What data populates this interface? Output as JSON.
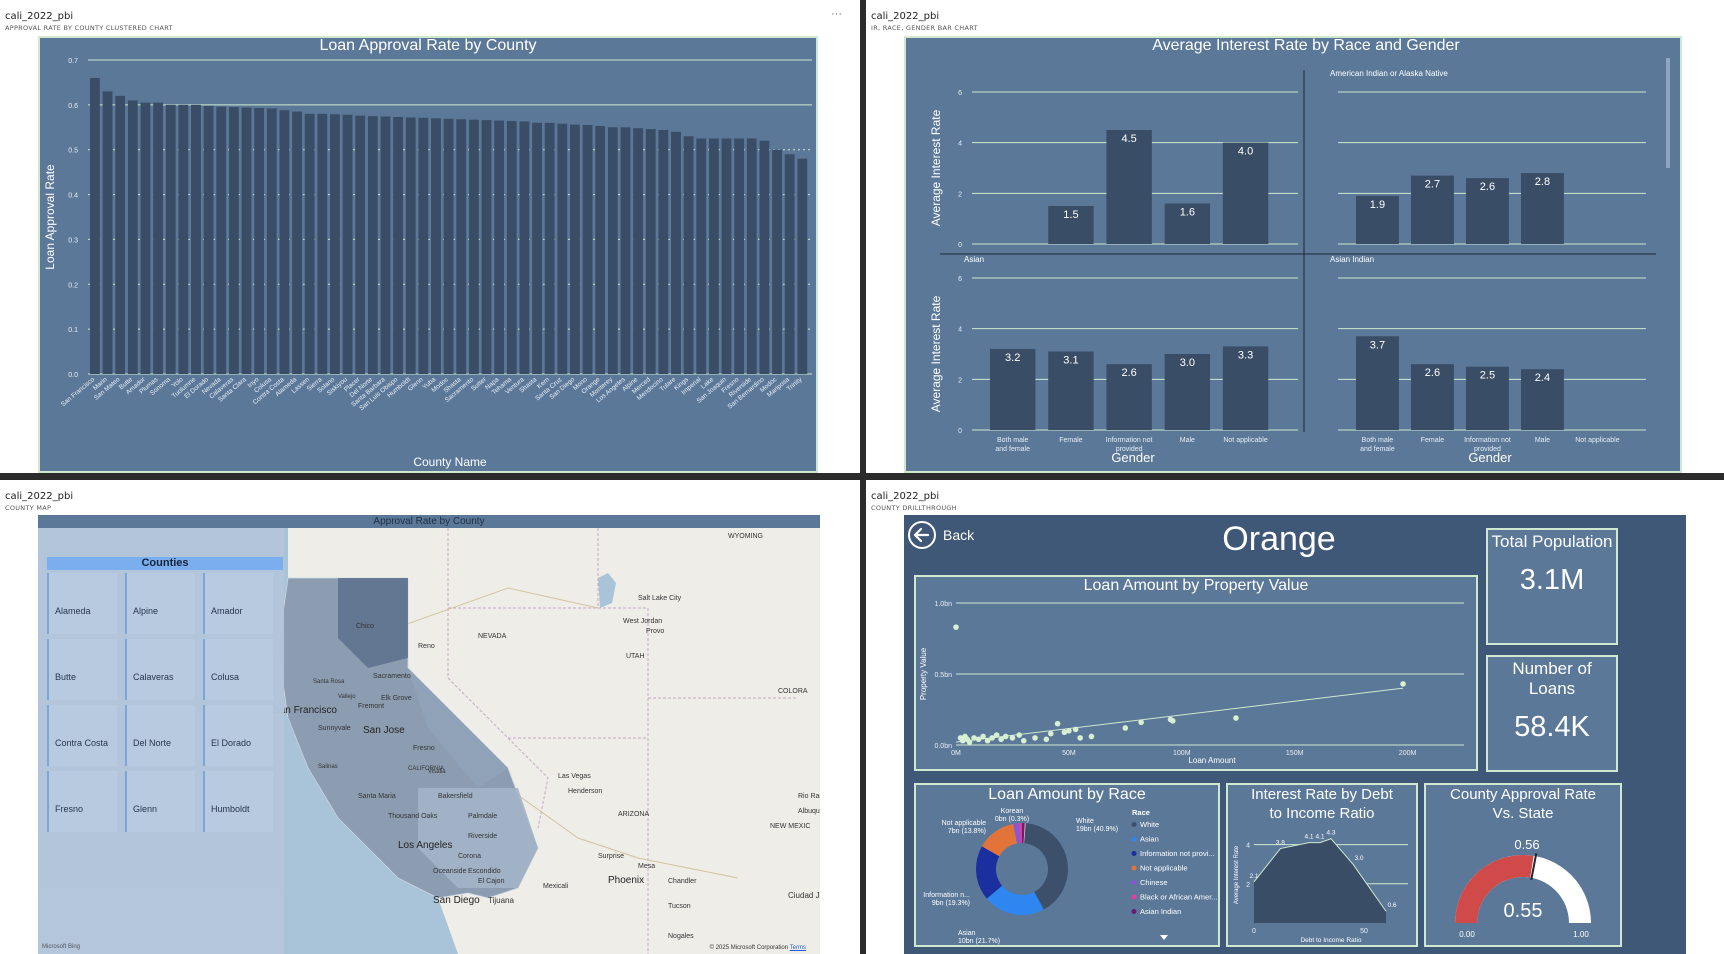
{
  "q1": {
    "report": "cali_2022_pbi",
    "visual": "APPROVAL RATE BY COUNTY CLUSTERED CHART",
    "more": "···",
    "chart_data": {
      "type": "bar",
      "title": "Loan Approval Rate by County",
      "xlabel": "County Name",
      "ylabel": "Loan Approval Rate",
      "ylim": [
        0,
        0.7
      ],
      "yticks": [
        "0.0",
        "0.1",
        "0.2",
        "0.3",
        "0.4",
        "0.5",
        "0.6",
        "0.7"
      ],
      "categories": [
        "San Francisco",
        "Marin",
        "San Mateo",
        "Butte",
        "Amador",
        "Plumas",
        "Sonoma",
        "Yolo",
        "Tuolumne",
        "El Dorado",
        "Nevada",
        "Calaveras",
        "Santa Clara",
        "Inyo",
        "Colusa",
        "Contra Costa",
        "Alameda",
        "Lassen",
        "Sierra",
        "Solano",
        "Siskiyou",
        "Placer",
        "Del Norte",
        "Santa Barbara",
        "San Luis Obispo",
        "Humboldt",
        "Glenn",
        "Yuba",
        "Modoc",
        "Shasta",
        "Sacramento",
        "Sutter",
        "Napa",
        "Tehama",
        "Ventura",
        "Shasta",
        "Kern",
        "Santa Cruz",
        "San Diego",
        "Mono",
        "Orange",
        "Monterey",
        "Los Angeles",
        "Alpine",
        "Merced",
        "Mendocino",
        "Tulare",
        "Kings",
        "Imperial",
        "Lake",
        "San Joaquin",
        "Fresno",
        "Riverside",
        "San Bernardino",
        "Modoc",
        "Mariposa",
        "Trinity"
      ],
      "values": [
        0.66,
        0.63,
        0.62,
        0.61,
        0.605,
        0.605,
        0.6,
        0.6,
        0.6,
        0.598,
        0.596,
        0.595,
        0.594,
        0.593,
        0.592,
        0.588,
        0.585,
        0.58,
        0.58,
        0.579,
        0.578,
        0.576,
        0.575,
        0.574,
        0.573,
        0.572,
        0.571,
        0.57,
        0.569,
        0.568,
        0.567,
        0.566,
        0.565,
        0.564,
        0.563,
        0.56,
        0.56,
        0.558,
        0.556,
        0.555,
        0.553,
        0.55,
        0.55,
        0.548,
        0.546,
        0.544,
        0.54,
        0.53,
        0.525,
        0.525,
        0.525,
        0.525,
        0.525,
        0.52,
        0.5,
        0.49,
        0.48
      ]
    }
  },
  "q2": {
    "report": "cali_2022_pbi",
    "visual": "IR, RACE, GENDER BAR CHART",
    "chart_data": {
      "type": "bar",
      "title": "Average Interest Rate by Race and Gender",
      "xlabel": "Gender",
      "ylabel": "Average Interest Rate",
      "ylim": [
        0,
        6
      ],
      "yticks": [
        "0",
        "2",
        "4",
        "6"
      ],
      "categories": [
        "Both male and female",
        "Female",
        "Information not provided",
        "Male",
        "Not applicable"
      ],
      "panels": [
        {
          "name": "",
          "values": [
            null,
            1.5,
            4.5,
            1.6,
            4.0
          ],
          "labels": [
            "",
            "1.5",
            "4.5",
            "1.6",
            "4.0"
          ]
        },
        {
          "name": "American Indian or Alaska Native",
          "values": [
            1.9,
            2.7,
            2.6,
            2.8,
            null
          ],
          "labels": [
            "1.9",
            "2.7",
            "2.6",
            "2.8",
            ""
          ]
        },
        {
          "name": "Asian",
          "values": [
            3.2,
            3.1,
            2.6,
            3.0,
            3.3
          ],
          "labels": [
            "3.2",
            "3.1",
            "2.6",
            "3.0",
            "3.3"
          ]
        },
        {
          "name": "Asian Indian",
          "values": [
            3.7,
            2.6,
            2.5,
            2.4,
            null
          ],
          "labels": [
            "3.7",
            "2.6",
            "2.5",
            "2.4",
            ""
          ]
        }
      ]
    }
  },
  "q3": {
    "report": "cali_2022_pbi",
    "visual": "COUNTY MAP",
    "map_title": "Approval Rate by County",
    "slicer_title": "Counties",
    "counties": [
      "Alameda",
      "Alpine",
      "Amador",
      "Butte",
      "Calaveras",
      "Colusa",
      "Contra Costa",
      "Del Norte",
      "El Dorado",
      "Fresno",
      "Glenn",
      "Humboldt"
    ],
    "labels": {
      "wyoming": "WYOMING",
      "nevada": "NEVADA",
      "utah": "UTAH",
      "arizona": "ARIZONA",
      "colorado": "COLORA",
      "newmexico": "NEW MEXIC",
      "saltlake": "Salt Lake City",
      "westjordan": "West Jordan",
      "provo": "Provo",
      "reno": "Reno",
      "sf": "San Francisco",
      "sanjose": "San Jose",
      "fremont": "Fremont",
      "sunnyvale": "Sunnyvale",
      "sacramento": "Sacramento",
      "elkgrove": "Elk Grove",
      "stockton": "Stockton",
      "chico": "Chico",
      "fresno": "Fresno",
      "california": "CALIFORNIA",
      "bakersfield": "Bakersfield",
      "santamaria": "Santa Maria",
      "thousandoaks": "Thousand Oaks",
      "palmdale": "Palmdale",
      "losangeles": "Los Angeles",
      "riverside": "Riverside",
      "corona": "Corona",
      "oceanside": "Oceanside",
      "escondido": "Escondido",
      "elcajon": "El Cajon",
      "sandiego": "San Diego",
      "tijuana": "Tijuana",
      "mexicali": "Mexicali",
      "lasvegas": "Las Vegas",
      "henderson": "Henderson",
      "surprise": "Surprise",
      "mesa": "Mesa",
      "phoenix": "Phoenix",
      "chandler": "Chandler",
      "tucson": "Tucson",
      "nogales": "Nogales",
      "ciudad": "Ciudad Juárez",
      "albuquerque": "Albuquerq",
      "riorancho": "Rio Ranch",
      "vallejo": "Vallejo",
      "santarosa": "Santa Rosa",
      "salinas": "Salinas",
      "visalia": "Visalia"
    },
    "attribution": "© 2025 Microsoft Corporation",
    "terms": "Terms",
    "bing": "Microsoft Bing"
  },
  "q4": {
    "report": "cali_2022_pbi",
    "visual": "COUNTY DRILLTHROUGH",
    "back_label": "Back",
    "county": "Orange",
    "kpi_population_title": "Total Population",
    "kpi_population_value": "3.1M",
    "kpi_loans_title": "Number of Loans",
    "kpi_loans_value": "58.4K",
    "scatter": {
      "type": "scatter",
      "title": "Loan Amount by Property Value",
      "xlabel": "Loan Amount",
      "ylabel": "Property Value",
      "xticks": [
        "0M",
        "50M",
        "100M",
        "150M",
        "200M"
      ],
      "yticks": [
        "0.0bn",
        "0.5bn",
        "1.0bn"
      ],
      "xlim": [
        0,
        225
      ],
      "ylim": [
        0,
        1.0
      ],
      "points": [
        [
          0,
          0.83
        ],
        [
          2,
          0.05
        ],
        [
          3,
          0.03
        ],
        [
          4,
          0.06
        ],
        [
          5,
          0.04
        ],
        [
          6,
          0.02
        ],
        [
          8,
          0.05
        ],
        [
          10,
          0.04
        ],
        [
          12,
          0.06
        ],
        [
          14,
          0.03
        ],
        [
          16,
          0.05
        ],
        [
          18,
          0.07
        ],
        [
          20,
          0.04
        ],
        [
          22,
          0.06
        ],
        [
          25,
          0.05
        ],
        [
          28,
          0.07
        ],
        [
          30,
          0.03
        ],
        [
          35,
          0.05
        ],
        [
          40,
          0.04
        ],
        [
          42,
          0.08
        ],
        [
          45,
          0.15
        ],
        [
          48,
          0.09
        ],
        [
          50,
          0.1
        ],
        [
          53,
          0.11
        ],
        [
          55,
          0.05
        ],
        [
          60,
          0.06
        ],
        [
          75,
          0.12
        ],
        [
          82,
          0.16
        ],
        [
          95,
          0.18
        ],
        [
          96,
          0.17
        ],
        [
          124,
          0.19
        ],
        [
          198,
          0.43
        ]
      ]
    },
    "pie": {
      "type": "pie",
      "title": "Loan Amount by Race",
      "legend_title": "Race",
      "slices": [
        {
          "name": "White",
          "value": 40.9,
          "color": "#3c4f6b",
          "label": "White 19bn (40.9%)"
        },
        {
          "name": "Asian",
          "value": 21.7,
          "color": "#2f86f0",
          "label": "Asian 10bn (21.7%)"
        },
        {
          "name": "Information not provi...",
          "value": 19.3,
          "color": "#1b2f9e",
          "label": "Information n... 9bn (19.3%)"
        },
        {
          "name": "Not applicable",
          "value": 13.8,
          "color": "#e2743a",
          "label": "Not applicable 7bn (13.8%)"
        },
        {
          "name": "Chinese",
          "value": 2.0,
          "color": "#8a55d6",
          "label": ""
        },
        {
          "name": "Black or African Amer...",
          "value": 1.0,
          "color": "#e0409a",
          "label": ""
        },
        {
          "name": "Asian Indian",
          "value": 1.0,
          "color": "#6a1e6e",
          "label": ""
        },
        {
          "name": "Korean",
          "value": 0.3,
          "color": "#f2c2d0",
          "label": "Korean 0bn (0.3%)"
        }
      ]
    },
    "dti": {
      "type": "area",
      "title": "Interest Rate by Debt to Income Ratio",
      "xlabel": "Debt to Income Ratio",
      "ylabel": "Average Interest Rate",
      "xticks": [
        "0",
        "50"
      ],
      "yticks": [
        "2",
        "4"
      ],
      "points": [
        [
          0,
          2.1
        ],
        [
          12,
          3.8
        ],
        [
          25,
          4.1
        ],
        [
          30,
          4.1
        ],
        [
          35,
          4.3
        ],
        [
          45,
          3.0
        ],
        [
          60,
          0.6
        ]
      ],
      "labels": [
        "2.1",
        "3.8",
        "4.1",
        "4.1",
        "4.3",
        "3.0",
        "0.6"
      ]
    },
    "gauge": {
      "title": "County Approval Rate Vs. State",
      "value": 0.55,
      "value_label": "0.55",
      "target_label": "0.56",
      "target": 0.56,
      "min_label": "0.00",
      "max_label": "1.00",
      "fill_color": "#d04a4a",
      "track_color": "#ffffff"
    }
  }
}
